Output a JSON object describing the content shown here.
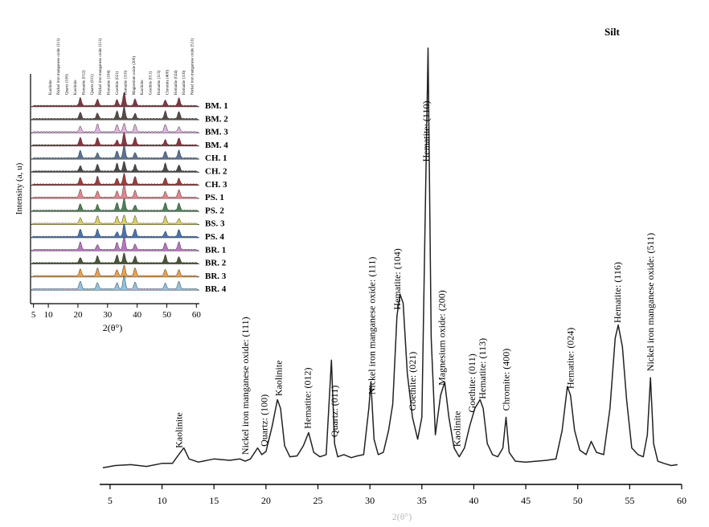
{
  "chart_data": [
    {
      "type": "line",
      "title": "Silt",
      "xlabel": "2(θ°)",
      "ylabel": "",
      "xlim": [
        4,
        60
      ],
      "ylim": [
        0,
        100
      ],
      "xticks": [
        "5",
        "10",
        "15",
        "20",
        "25",
        "30",
        "35",
        "40",
        "45",
        "50",
        "55",
        "60"
      ],
      "series": [
        {
          "values_note": "",
          "x": [
            4.3,
            5.5,
            7,
            8.5,
            10,
            11,
            11.6,
            12.1,
            12.6,
            13.5,
            15,
            16.5,
            17.5,
            18,
            18.5,
            19.2,
            19.6,
            20,
            20.6,
            21.1,
            21.4,
            21.8,
            22.3,
            23,
            23.6,
            24.1,
            24.6,
            25.2,
            25.8,
            26.3,
            26.6,
            26.9,
            27.5,
            28.2,
            28.8,
            29.4,
            29.9,
            30.1,
            30.4,
            30.8,
            31.3,
            31.8,
            32.2,
            32.6,
            32.9,
            33.2,
            33.6,
            34.1,
            34.6,
            35,
            35.3,
            35.6,
            35.9,
            36.3,
            36.8,
            37.2,
            37.6,
            38.1,
            38.6,
            39.1,
            39.6,
            40.1,
            40.6,
            40.9,
            41.3,
            41.8,
            42.3,
            42.8,
            43.1,
            43.4,
            44,
            45,
            46,
            47,
            47.9,
            48.5,
            49,
            49.3,
            49.7,
            50.2,
            50.8,
            51.3,
            51.8,
            52.5,
            53.1,
            53.6,
            53.9,
            54.3,
            54.7,
            55.2,
            55.8,
            56.3,
            56.7,
            57,
            57.3,
            57.7,
            58.3,
            59,
            59.6
          ],
          "values": [
            0.5,
            1,
            1.2,
            0.8,
            1.5,
            1.5,
            3.5,
            5,
            2.5,
            1.8,
            2.5,
            2.2,
            2.5,
            2,
            2.5,
            5,
            3.5,
            4.2,
            10,
            16,
            14,
            5.5,
            3,
            3.2,
            5.5,
            8.5,
            4,
            3,
            3.5,
            25,
            6,
            3,
            3.5,
            2.8,
            3.2,
            3.5,
            14,
            20,
            7,
            3.5,
            4,
            9,
            15,
            35,
            40,
            38,
            22,
            12,
            7,
            12,
            55,
            96,
            30,
            8,
            17,
            20,
            12,
            5,
            3,
            5,
            10,
            14,
            16,
            14,
            6,
            3.5,
            3,
            5,
            12,
            4,
            2,
            1.8,
            2,
            2.2,
            2.5,
            9,
            19,
            17,
            9,
            4.5,
            3.5,
            6.5,
            4,
            3.5,
            14,
            30,
            33,
            28,
            16,
            5,
            3.5,
            3,
            8,
            21,
            6,
            2,
            1.5,
            1,
            1.2
          ]
        }
      ],
      "annotations": [
        {
          "x": 11.6,
          "label": "Kaolinite"
        },
        {
          "x": 18,
          "label": "Nickel iron manganese oxide: (111)"
        },
        {
          "x": 19.8,
          "label": "Quartz: (100)"
        },
        {
          "x": 21.2,
          "label": "Kaolinite"
        },
        {
          "x": 24,
          "label": "Hematite: (012)"
        },
        {
          "x": 26.6,
          "label": "Quartz: (011)"
        },
        {
          "x": 30.2,
          "label": "Nickel iron manganese oxide: (111)"
        },
        {
          "x": 32.6,
          "label": "Hematite: (104)"
        },
        {
          "x": 34.1,
          "label": "Goethite: (021)"
        },
        {
          "x": 35.4,
          "label": "Hematite: (110)"
        },
        {
          "x": 36.9,
          "label": "Magnesium oxide: (200)"
        },
        {
          "x": 38.4,
          "label": "Kaolinite"
        },
        {
          "x": 39.8,
          "label": "Goethite: (011)"
        },
        {
          "x": 40.8,
          "label": "Hematite: (113)"
        },
        {
          "x": 43.1,
          "label": "Chromite: (400)"
        },
        {
          "x": 49.3,
          "label": "Hematite: (024)"
        },
        {
          "x": 53.8,
          "label": "Hematite: (116)"
        },
        {
          "x": 57,
          "label": "Nickel iron manganese oxide: (511)"
        }
      ]
    },
    {
      "type": "line",
      "title": "",
      "xlabel": "2(θ°)",
      "ylabel": "Intensity (a, u)",
      "xlim": [
        4,
        61
      ],
      "xticks": [
        "5",
        "10",
        "20",
        "30",
        "40",
        "50",
        "60"
      ],
      "legend": "right",
      "peak_positions": [
        20.8,
        26.6,
        33.2,
        35.6,
        39.3,
        49.5,
        54.1
      ],
      "top_labels": [
        "Kaolinite",
        "Nickel iron manganese oxide (111)",
        "Quartz (100)",
        "Kaolinite",
        "Hematite (012)",
        "Quartz (011)",
        "Nickel iron manganese oxide (111)",
        "Hematite (104)",
        "Goethite (021)",
        "Hematite (110)",
        "Magnesium oxide (200)",
        "Kaolinite",
        "Goethite (011)",
        "Hematite (113)",
        "Chromite (400)",
        "Hematite (024)",
        "Hematite (116)",
        "Nickel iron manganese oxide (511)"
      ],
      "series": [
        {
          "name": "BM. 1",
          "color": "#6b1420"
        },
        {
          "name": "BM. 2",
          "color": "#3a2a26"
        },
        {
          "name": "BM. 3",
          "color": "#d9a6d9"
        },
        {
          "name": "BM. 4",
          "color": "#7a1020"
        },
        {
          "name": "CH. 1",
          "color": "#3d5a80"
        },
        {
          "name": "CH. 2",
          "color": "#2a2a2a"
        },
        {
          "name": "CH. 3",
          "color": "#8c1c1c"
        },
        {
          "name": "PS. 1",
          "color": "#e0707a"
        },
        {
          "name": "PS. 2",
          "color": "#2e6b3a"
        },
        {
          "name": "BS. 3",
          "color": "#d6c84a"
        },
        {
          "name": "PS. 4",
          "color": "#2a5aa0"
        },
        {
          "name": "BR. 1",
          "color": "#b05ab8"
        },
        {
          "name": "BR. 2",
          "color": "#2a3a12"
        },
        {
          "name": "BR. 3",
          "color": "#e8922a"
        },
        {
          "name": "BR. 4",
          "color": "#7fb8d8"
        }
      ]
    }
  ]
}
